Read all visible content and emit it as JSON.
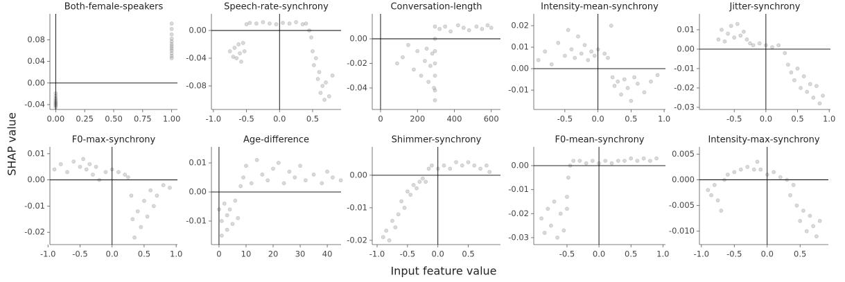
{
  "xlabel": "Input feature value",
  "ylabel": "SHAP value",
  "chart_data": [
    {
      "type": "scatter",
      "title": "Both-female-speakers",
      "color": "#777777",
      "vline": 0,
      "hline": 0,
      "xlim": [
        -0.05,
        1.05
      ],
      "ylim": [
        -0.049,
        0.128
      ],
      "xticks": [
        {
          "value": 0,
          "label": "0.00"
        },
        0.25,
        {
          "value": 0.5,
          "label": "0.50"
        },
        0.75,
        {
          "value": 1,
          "label": "1.00"
        }
      ],
      "yticks": [
        -0.04,
        {
          "value": 0,
          "label": "0.00"
        },
        0.04,
        0.08
      ],
      "x": [
        0,
        0,
        0,
        0,
        0,
        0,
        0,
        0,
        0,
        0,
        1,
        1,
        1,
        1,
        1,
        1,
        1,
        1,
        1,
        1,
        1,
        1
      ],
      "values": [
        -0.045,
        -0.042,
        -0.04,
        -0.038,
        -0.036,
        -0.034,
        -0.031,
        -0.028,
        -0.024,
        -0.019,
        0.046,
        0.05,
        0.055,
        0.06,
        0.064,
        0.068,
        0.072,
        0.077,
        0.082,
        0.09,
        0.1,
        0.11
      ]
    },
    {
      "type": "scatter",
      "title": "Speech-rate-synchrony",
      "color": "#777777",
      "vline": 0,
      "hline": 0,
      "xlim": [
        -1.03,
        0.93
      ],
      "ylim": [
        -0.114,
        0.024
      ],
      "xticks": [
        {
          "value": -1,
          "label": "-1.0"
        },
        -0.5,
        {
          "value": 0,
          "label": "0.0"
        },
        0.5
      ],
      "yticks": [
        -0.08,
        -0.04,
        {
          "value": 0,
          "label": "0.00"
        }
      ],
      "x": [
        -0.75,
        -0.7,
        -0.68,
        -0.65,
        -0.62,
        -0.6,
        -0.58,
        -0.55,
        -0.53,
        -0.5,
        -0.45,
        -0.35,
        -0.25,
        -0.15,
        -0.05,
        0.05,
        0.15,
        0.25,
        0.35,
        0.4,
        0.45,
        0.48,
        0.5,
        0.52,
        0.55,
        0.58,
        0.6,
        0.62,
        0.65,
        0.68,
        0.7,
        0.75,
        0.8
      ],
      "values": [
        -0.03,
        -0.038,
        -0.025,
        -0.04,
        -0.02,
        -0.033,
        -0.045,
        -0.018,
        -0.03,
        0.009,
        0.011,
        0.01,
        0.012,
        0.01,
        0.009,
        0.011,
        0.01,
        0.012,
        0.009,
        0.01,
        0.0,
        -0.01,
        -0.03,
        -0.05,
        -0.04,
        -0.07,
        -0.06,
        -0.09,
        -0.08,
        -0.1,
        -0.075,
        -0.095,
        -0.065
      ]
    },
    {
      "type": "scatter",
      "title": "Conversation-length",
      "color": "#777777",
      "vline": 0,
      "hline": 0,
      "xlim": [
        -45,
        650
      ],
      "ylim": [
        -0.0575,
        0.0203
      ],
      "xticks": [
        0,
        200,
        400,
        600
      ],
      "yticks": [
        -0.04,
        -0.02,
        {
          "value": 0,
          "label": "0.00"
        }
      ],
      "x": [
        90,
        120,
        150,
        180,
        200,
        220,
        240,
        250,
        260,
        270,
        280,
        290,
        295,
        295,
        295,
        295,
        295,
        295,
        295,
        320,
        350,
        380,
        420,
        450,
        480,
        520,
        550,
        580,
        600
      ],
      "values": [
        -0.02,
        -0.015,
        -0.005,
        -0.025,
        -0.01,
        -0.03,
        -0.018,
        -0.008,
        -0.035,
        -0.022,
        -0.012,
        -0.04,
        -0.05,
        -0.042,
        -0.03,
        -0.02,
        -0.01,
        0.0,
        0.01,
        0.008,
        0.01,
        0.006,
        0.011,
        0.009,
        0.007,
        0.01,
        0.008,
        0.011,
        0.009
      ]
    },
    {
      "type": "scatter",
      "title": "Intensity-mean-synchrony",
      "color": "#777777",
      "vline": 0,
      "hline": 0,
      "xlim": [
        -0.97,
        1.02
      ],
      "ylim": [
        -0.019,
        0.0255
      ],
      "xticks": [
        -0.5,
        {
          "value": 0,
          "label": "0.0"
        },
        0.5,
        {
          "value": 1,
          "label": "1.0"
        }
      ],
      "yticks": [
        -0.01,
        {
          "value": 0,
          "label": "0.00"
        },
        0.01,
        0.02
      ],
      "x": [
        -0.9,
        -0.8,
        -0.7,
        -0.6,
        -0.5,
        -0.45,
        -0.4,
        -0.35,
        -0.3,
        -0.25,
        -0.2,
        -0.15,
        -0.1,
        -0.05,
        0.0,
        0.1,
        0.15,
        0.2,
        0.22,
        0.25,
        0.3,
        0.35,
        0.4,
        0.45,
        0.5,
        0.55,
        0.6,
        0.7,
        0.8,
        0.9
      ],
      "values": [
        0.004,
        0.008,
        0.002,
        0.012,
        0.006,
        0.018,
        0.009,
        0.005,
        0.015,
        0.007,
        0.011,
        0.004,
        0.008,
        0.006,
        0.009,
        0.007,
        0.005,
        0.02,
        -0.004,
        -0.008,
        -0.006,
        -0.012,
        -0.005,
        -0.009,
        -0.015,
        -0.004,
        -0.007,
        -0.011,
        -0.006,
        -0.003
      ]
    },
    {
      "type": "scatter",
      "title": "Jitter-synchrony",
      "color": "#777777",
      "vline": 0,
      "hline": 0,
      "xlim": [
        -1.05,
        1.02
      ],
      "ylim": [
        -0.0311,
        0.0182
      ],
      "xticks": [
        -0.5,
        {
          "value": 0,
          "label": "0.0"
        },
        0.5,
        {
          "value": 1,
          "label": "1.0"
        }
      ],
      "yticks": [
        -0.03,
        -0.02,
        -0.01,
        {
          "value": 0,
          "label": "0.00"
        },
        0.01
      ],
      "x": [
        -0.75,
        -0.7,
        -0.65,
        -0.6,
        -0.55,
        -0.5,
        -0.45,
        -0.4,
        -0.35,
        -0.3,
        -0.25,
        -0.2,
        -0.1,
        0.0,
        0.1,
        0.2,
        0.3,
        0.35,
        0.4,
        0.45,
        0.5,
        0.55,
        0.6,
        0.65,
        0.7,
        0.75,
        0.8,
        0.85,
        0.9
      ],
      "values": [
        0.005,
        0.01,
        0.004,
        0.008,
        0.012,
        0.006,
        0.013,
        0.007,
        0.009,
        0.005,
        0.003,
        0.002,
        0.003,
        0.002,
        0.001,
        0.002,
        -0.002,
        -0.008,
        -0.012,
        -0.016,
        -0.01,
        -0.02,
        -0.014,
        -0.022,
        -0.018,
        -0.025,
        -0.019,
        -0.028,
        -0.024
      ]
    },
    {
      "type": "scatter",
      "title": "F0-max-synchrony",
      "color": "#777777",
      "vline": 0,
      "hline": 0,
      "xlim": [
        -0.97,
        1.02
      ],
      "ylim": [
        -0.0247,
        0.0126
      ],
      "xticks": [
        {
          "value": -1,
          "label": "-1.0"
        },
        -0.5,
        {
          "value": 0,
          "label": "0.0"
        },
        0.5,
        {
          "value": 1,
          "label": "1.0"
        }
      ],
      "yticks": [
        -0.02,
        -0.01,
        {
          "value": 0,
          "label": "0.00"
        },
        0.01
      ],
      "x": [
        -0.9,
        -0.8,
        -0.7,
        -0.6,
        -0.5,
        -0.45,
        -0.4,
        -0.35,
        -0.3,
        -0.25,
        -0.2,
        -0.1,
        0.0,
        0.1,
        0.2,
        0.25,
        0.3,
        0.32,
        0.35,
        0.4,
        0.45,
        0.5,
        0.55,
        0.6,
        0.65,
        0.7,
        0.8,
        0.9
      ],
      "values": [
        0.004,
        0.006,
        0.003,
        0.007,
        0.005,
        0.008,
        0.004,
        0.006,
        0.002,
        0.005,
        0.0,
        0.003,
        0.004,
        0.003,
        0.002,
        0.001,
        -0.006,
        -0.015,
        -0.022,
        -0.012,
        -0.018,
        -0.008,
        -0.014,
        -0.004,
        -0.01,
        -0.006,
        -0.002,
        -0.003
      ]
    },
    {
      "type": "scatter",
      "title": "Age-difference",
      "color": "#777777",
      "vline": 0,
      "hline": 0,
      "xlim": [
        -2.8,
        45.1
      ],
      "ylim": [
        -0.0181,
        0.0155
      ],
      "xticks": [
        0,
        10,
        20,
        30,
        40
      ],
      "yticks": [
        -0.01,
        {
          "value": 0,
          "label": "0.00"
        },
        0.01
      ],
      "x": [
        0,
        1,
        1,
        2,
        3,
        3,
        4,
        5,
        6,
        7,
        8,
        9,
        10,
        12,
        14,
        16,
        18,
        20,
        22,
        24,
        26,
        28,
        30,
        32,
        35,
        38,
        40,
        42,
        45
      ],
      "values": [
        -0.006,
        -0.01,
        -0.015,
        -0.004,
        -0.008,
        -0.013,
        -0.006,
        -0.011,
        -0.003,
        -0.009,
        0.002,
        0.005,
        0.009,
        0.003,
        0.011,
        0.006,
        0.004,
        0.008,
        0.01,
        0.003,
        0.007,
        0.005,
        0.009,
        0.004,
        0.006,
        0.003,
        0.007,
        0.005,
        0.004
      ]
    },
    {
      "type": "scatter",
      "title": "Shimmer-synchrony",
      "color": "#777777",
      "vline": 0,
      "hline": 0,
      "xlim": [
        -1.08,
        1.03
      ],
      "ylim": [
        -0.0213,
        0.0087
      ],
      "xticks": [
        {
          "value": -1,
          "label": "-1.0"
        },
        -0.5,
        {
          "value": 0,
          "label": "0.0"
        },
        0.5
      ],
      "yticks": [
        -0.02,
        -0.01,
        {
          "value": 0,
          "label": "0.00"
        }
      ],
      "x": [
        -0.9,
        -0.85,
        -0.8,
        -0.75,
        -0.7,
        -0.65,
        -0.6,
        -0.55,
        -0.5,
        -0.45,
        -0.4,
        -0.35,
        -0.3,
        -0.25,
        -0.2,
        -0.15,
        -0.1,
        0.0,
        0.1,
        0.2,
        0.3,
        0.4,
        0.5,
        0.6,
        0.7,
        0.8,
        0.85
      ],
      "values": [
        -0.019,
        -0.017,
        -0.02,
        -0.014,
        -0.016,
        -0.012,
        -0.008,
        -0.01,
        -0.005,
        -0.006,
        -0.003,
        -0.004,
        -0.002,
        -0.001,
        -0.002,
        0.002,
        0.003,
        0.002,
        0.003,
        0.002,
        0.004,
        0.003,
        0.004,
        0.003,
        0.002,
        0.003,
        0.001
      ]
    },
    {
      "type": "scatter",
      "title": "F0-mean-synchrony",
      "color": "#777777",
      "vline": 0,
      "hline": 0,
      "xlim": [
        -1.02,
        1.04
      ],
      "ylim": [
        -0.0329,
        0.0078
      ],
      "xticks": [
        -0.5,
        {
          "value": 0,
          "label": "0.0"
        },
        0.5,
        {
          "value": 1,
          "label": "1.0"
        }
      ],
      "yticks": [
        -0.03,
        -0.02,
        -0.01,
        {
          "value": 0,
          "label": "0.00"
        }
      ],
      "x": [
        -0.9,
        -0.85,
        -0.8,
        -0.75,
        -0.7,
        -0.65,
        -0.6,
        -0.55,
        -0.5,
        -0.5,
        -0.48,
        -0.45,
        -0.4,
        -0.3,
        -0.2,
        -0.1,
        0.0,
        0.1,
        0.2,
        0.3,
        0.4,
        0.5,
        0.6,
        0.7,
        0.8,
        0.9
      ],
      "values": [
        -0.022,
        -0.028,
        -0.018,
        -0.025,
        -0.015,
        -0.03,
        -0.02,
        -0.027,
        -0.013,
        -0.018,
        -0.005,
        0.0,
        0.002,
        0.002,
        0.001,
        0.002,
        0.001,
        0.002,
        0.001,
        0.002,
        0.002,
        0.003,
        0.002,
        0.003,
        0.002,
        0.003
      ]
    },
    {
      "type": "scatter",
      "title": "Intensity-max-synchrony",
      "color": "#777777",
      "vline": 0,
      "hline": 0,
      "xlim": [
        -1.03,
        0.93
      ],
      "ylim": [
        -0.0126,
        0.0064
      ],
      "xticks": [
        {
          "value": -1,
          "label": "-1.0"
        },
        -0.5,
        {
          "value": 0,
          "label": "0.0"
        },
        0.5
      ],
      "yticks": [
        {
          "value": -0.01,
          "label": "-0.010"
        },
        -0.005,
        {
          "value": 0,
          "label": "0.000"
        },
        0.005
      ],
      "x": [
        -0.9,
        -0.85,
        -0.8,
        -0.75,
        -0.7,
        -0.65,
        -0.6,
        -0.5,
        -0.4,
        -0.3,
        -0.2,
        -0.15,
        -0.1,
        0.0,
        0.1,
        0.2,
        0.3,
        0.35,
        0.4,
        0.45,
        0.5,
        0.55,
        0.6,
        0.65,
        0.7,
        0.75,
        0.8
      ],
      "values": [
        -0.002,
        -0.003,
        -0.001,
        -0.004,
        -0.006,
        0.0,
        0.001,
        0.0015,
        0.002,
        0.0025,
        0.002,
        0.0035,
        0.002,
        0.001,
        0.0015,
        0.0005,
        0.0,
        -0.003,
        -0.001,
        -0.005,
        -0.008,
        -0.006,
        -0.01,
        -0.007,
        -0.009,
        -0.011,
        -0.008
      ]
    }
  ]
}
